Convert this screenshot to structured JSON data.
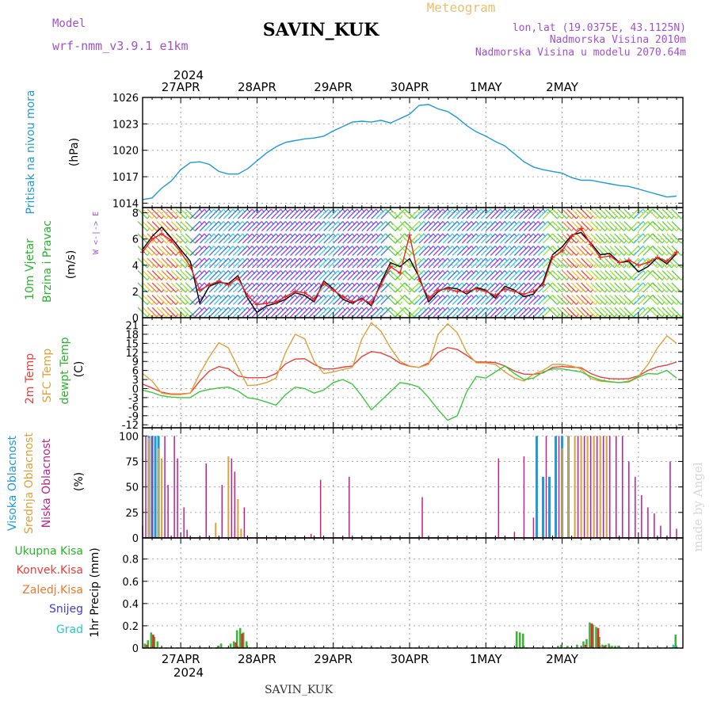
{
  "header": {
    "model_label": "Model",
    "model_name": "wrf-nmm_v3.9.1  e1km",
    "station": "SAVIN_KUK",
    "product": "Meteogram",
    "lonlat": "lon,lat (19.0375E, 43.1125N)",
    "altitude": "Nadmorska Visina 2010m",
    "model_altitude": "Nadmorska Visina u modelu 2070.64m",
    "year": "2024",
    "footer_station": "SAVIN_KUK",
    "credit": "made by Angel"
  },
  "dates": [
    "27APR",
    "28APR",
    "29APR",
    "30APR",
    "1MAY",
    "2MAY"
  ],
  "colors": {
    "pressure": "#1e9ad6",
    "wind_speed": "#000000",
    "wind_gust": "#e8282a",
    "t2m": "#e8403a",
    "sfc": "#e0a038",
    "dewpoint": "#3cc83c",
    "cloud_high": "#1e9ad6",
    "cloud_mid": "#e0a038",
    "cloud_low": "#c0208c",
    "precip_total": "#3cb43c",
    "precip_conv": "#e8282a",
    "precip_frozen": "#f07828",
    "precip_snow": "#3c3cdc",
    "precip_graupel": "#28c8c8"
  },
  "panels": {
    "pressure": {
      "label": "Pritisak na nivou mora",
      "unit": "(hPa)"
    },
    "wind": {
      "label1": "10m Vjetar",
      "label2": "Brzina i Pravac",
      "unit": "(m/s)",
      "compass": "W <-|-> E"
    },
    "temp": {
      "label1": "2m Temp",
      "label2": "SFC Temp",
      "label3": "dewpt Temp",
      "unit": "(C)"
    },
    "cloud": {
      "label1": "Visoka Oblacnost",
      "label2": "Srednja Oblacnost",
      "label3": "Niska Oblacnost",
      "unit": "(%)"
    },
    "precip": {
      "label1": "Ukupna Kisa",
      "label2": "Konvek.Kisa",
      "label3": "Zaledj.Kisa",
      "label4": "Snijeg",
      "label5": "Grad",
      "unit": "1hr Precip (mm)"
    }
  },
  "chart_data": [
    {
      "type": "line",
      "x_unit": "hours from 26APR 12UTC",
      "ylabel": "(hPa)",
      "yticks": [
        1014,
        1017,
        1020,
        1023,
        1026
      ],
      "ylim": [
        1013.5,
        1026
      ],
      "grid": true,
      "series": [
        {
          "name": "Pritisak na nivou mora",
          "x": [
            0,
            3,
            6,
            9,
            12,
            15,
            18,
            21,
            24,
            27,
            30,
            33,
            36,
            39,
            42,
            45,
            48,
            51,
            54,
            57,
            60,
            63,
            66,
            69,
            72,
            75,
            78,
            81,
            84,
            87,
            90,
            93,
            96,
            99,
            102,
            105,
            108,
            111,
            114,
            117,
            120,
            123,
            126,
            129,
            132,
            135,
            138,
            141,
            144,
            147,
            150,
            153,
            156,
            159,
            162,
            165,
            168
          ],
          "values": [
            1014.4,
            1014.6,
            1015.7,
            1016.5,
            1017.8,
            1018.6,
            1018.7,
            1018.4,
            1017.6,
            1017.3,
            1017.3,
            1017.9,
            1018.8,
            1019.7,
            1020.4,
            1020.9,
            1021.1,
            1021.3,
            1021.4,
            1021.6,
            1022.2,
            1022.7,
            1023.2,
            1023.3,
            1023.2,
            1023.4,
            1023.1,
            1023.6,
            1024.1,
            1025.1,
            1025.2,
            1024.7,
            1024.4,
            1023.7,
            1022.8,
            1022.1,
            1021.6,
            1021.0,
            1020.5,
            1019.6,
            1018.7,
            1018.1,
            1017.8,
            1017.6,
            1017.4,
            1016.9,
            1016.6,
            1016.6,
            1016.4,
            1016.2,
            1016.0,
            1015.9,
            1015.6,
            1015.3,
            1015.0,
            1014.7,
            1014.8
          ]
        }
      ]
    },
    {
      "type": "line",
      "x_unit": "hours from 26APR 12UTC",
      "ylabel": "(m/s)",
      "yticks": [
        0,
        2,
        4,
        6,
        8
      ],
      "ylim": [
        0,
        8.4
      ],
      "grid": true,
      "series": [
        {
          "name": "speed",
          "x": [
            0,
            3,
            6,
            9,
            12,
            15,
            18,
            21,
            24,
            27,
            30,
            33,
            36,
            39,
            42,
            45,
            48,
            51,
            54,
            57,
            60,
            63,
            66,
            69,
            72,
            75,
            78,
            81,
            84,
            87,
            90,
            93,
            96,
            99,
            102,
            105,
            108,
            111,
            114,
            117,
            120,
            123,
            126,
            129,
            132,
            135,
            138,
            141,
            144,
            147,
            150,
            153,
            156,
            159,
            162,
            165,
            168
          ],
          "values": [
            5.2,
            6.2,
            6.9,
            6.1,
            5.2,
            4.3,
            1.1,
            2.4,
            2.7,
            2.6,
            3.2,
            1.5,
            0.4,
            0.9,
            1.1,
            1.4,
            1.9,
            1.7,
            1.2,
            2.8,
            2.2,
            1.4,
            1.1,
            1.5,
            0.9,
            2.7,
            4.2,
            3.9,
            4.5,
            3.1,
            1.2,
            2.0,
            2.3,
            2.2,
            1.8,
            2.3,
            2.1,
            1.5,
            2.4,
            2.1,
            1.6,
            1.8,
            2.7,
            4.8,
            5.4,
            6.3,
            6.5,
            5.7,
            4.8,
            4.9,
            4.2,
            4.3,
            3.5,
            3.9,
            4.6,
            4.1,
            4.9
          ]
        },
        {
          "name": "gust",
          "x": [
            0,
            3,
            6,
            9,
            12,
            15,
            18,
            21,
            24,
            27,
            30,
            33,
            36,
            39,
            42,
            45,
            48,
            51,
            54,
            57,
            60,
            63,
            66,
            69,
            72,
            75,
            78,
            81,
            84,
            87,
            90,
            93,
            96,
            99,
            102,
            105,
            108,
            111,
            114,
            117,
            120,
            123,
            126,
            129,
            132,
            135,
            138,
            141,
            144,
            147,
            150,
            153,
            156,
            159,
            162,
            165,
            168
          ],
          "values": [
            5.0,
            6.0,
            6.4,
            5.9,
            5.0,
            3.9,
            2.1,
            2.5,
            2.8,
            2.5,
            3.0,
            1.7,
            1.0,
            1.1,
            1.2,
            1.6,
            2.0,
            1.9,
            1.4,
            2.6,
            2.1,
            1.6,
            1.2,
            1.4,
            1.1,
            2.5,
            3.9,
            3.4,
            6.3,
            2.9,
            1.5,
            2.1,
            2.2,
            2.0,
            2.0,
            2.2,
            2.0,
            1.7,
            2.2,
            2.0,
            1.8,
            2.0,
            2.5,
            4.6,
            5.1,
            6.2,
            6.8,
            5.6,
            4.6,
            4.7,
            4.2,
            4.4,
            4.0,
            4.2,
            4.6,
            4.3,
            5.0
          ]
        }
      ]
    },
    {
      "type": "line",
      "x_unit": "hours from 26APR 12UTC",
      "ylabel": "(C)",
      "yticks": [
        -12,
        -9,
        -6,
        -3,
        0,
        3,
        6,
        9,
        12,
        15,
        18,
        21
      ],
      "ylim": [
        -13,
        23.5
      ],
      "grid": true,
      "series": [
        {
          "name": "2m Temp",
          "x": [
            0,
            3,
            6,
            9,
            12,
            15,
            18,
            21,
            24,
            27,
            30,
            33,
            36,
            39,
            42,
            45,
            48,
            51,
            54,
            57,
            60,
            63,
            66,
            69,
            72,
            75,
            78,
            81,
            84,
            87,
            90,
            93,
            96,
            99,
            102,
            105,
            108,
            111,
            114,
            117,
            120,
            123,
            126,
            129,
            132,
            135,
            138,
            141,
            144,
            147,
            150,
            153,
            156,
            159,
            162,
            165,
            168
          ],
          "values": [
            1.5,
            0.2,
            -1.2,
            -1.8,
            -1.8,
            -1.5,
            2.5,
            5.8,
            7.3,
            6.6,
            4.2,
            3.6,
            3.6,
            3.7,
            5.0,
            8.2,
            9.8,
            9.9,
            8.0,
            6.5,
            6.5,
            7.1,
            7.5,
            10.6,
            12.3,
            11.8,
            10.5,
            8.4,
            7.4,
            7.0,
            8.5,
            12.0,
            13.6,
            13.0,
            11.0,
            8.8,
            8.8,
            8.6,
            7.5,
            5.8,
            4.8,
            4.7,
            5.2,
            7.0,
            7.3,
            7.1,
            6.9,
            5.0,
            3.8,
            3.3,
            3.2,
            3.3,
            4.2,
            6.0,
            7.2,
            7.8,
            8.8
          ]
        },
        {
          "name": "SFC Temp",
          "x": [
            0,
            3,
            6,
            9,
            12,
            15,
            18,
            21,
            24,
            27,
            30,
            33,
            36,
            39,
            42,
            45,
            48,
            51,
            54,
            57,
            60,
            63,
            66,
            69,
            72,
            75,
            78,
            81,
            84,
            87,
            90,
            93,
            96,
            99,
            102,
            105,
            108,
            111,
            114,
            117,
            120,
            123,
            126,
            129,
            132,
            135,
            138,
            141,
            144,
            147,
            150,
            153,
            156,
            159,
            162,
            165,
            168
          ],
          "values": [
            5.0,
            2.5,
            -1.5,
            -2.0,
            -2.0,
            -1.5,
            5.0,
            10.5,
            15.2,
            13.5,
            7.0,
            1.0,
            1.2,
            2.0,
            3.5,
            12.0,
            18.0,
            16.5,
            9.0,
            5.0,
            5.5,
            6.3,
            7.0,
            16.5,
            21.8,
            19.0,
            13.5,
            9.0,
            7.5,
            7.0,
            8.0,
            18.0,
            21.5,
            18.5,
            12.0,
            8.5,
            8.5,
            8.0,
            5.5,
            3.5,
            2.5,
            4.8,
            6.0,
            8.0,
            8.0,
            7.5,
            6.5,
            3.3,
            2.5,
            2.2,
            2.0,
            2.5,
            4.0,
            8.0,
            13.5,
            17.5,
            15.0
          ]
        },
        {
          "name": "dewpt Temp",
          "x": [
            0,
            3,
            6,
            9,
            12,
            15,
            18,
            21,
            24,
            27,
            30,
            33,
            36,
            39,
            42,
            45,
            48,
            51,
            54,
            57,
            60,
            63,
            66,
            69,
            72,
            75,
            78,
            81,
            84,
            87,
            90,
            93,
            96,
            99,
            102,
            105,
            108,
            111,
            114,
            117,
            120,
            123,
            126,
            129,
            132,
            135,
            138,
            141,
            144,
            147,
            150,
            153,
            156,
            159,
            162,
            165,
            168
          ],
          "values": [
            -0.5,
            -1.3,
            -2.4,
            -2.8,
            -3.0,
            -3.0,
            -1.0,
            -0.3,
            0.2,
            0.5,
            -0.8,
            -3.0,
            -3.5,
            -4.5,
            -5.5,
            -2.0,
            0.5,
            0.0,
            -1.5,
            -0.5,
            2.0,
            3.0,
            1.5,
            -2.5,
            -7.0,
            -4.0,
            -1.0,
            2.0,
            1.5,
            0.5,
            -3.0,
            -7.0,
            -10.5,
            -9.0,
            -1.0,
            4.0,
            3.5,
            5.5,
            7.5,
            5.0,
            3.0,
            3.5,
            5.5,
            6.5,
            6.5,
            6.0,
            5.5,
            4.0,
            2.8,
            2.3,
            2.0,
            2.2,
            3.8,
            5.0,
            4.8,
            6.0,
            3.5
          ]
        }
      ]
    },
    {
      "type": "bar",
      "x_unit": "hours from 26APR 12UTC",
      "ylabel": "(%)",
      "yticks": [
        0,
        25,
        50,
        75,
        100
      ],
      "ylim": [
        0,
        108
      ],
      "grid": true,
      "series": [
        {
          "name": "Visoka Oblacnost",
          "x": [
            2,
            3,
            4,
            5,
            124,
            126,
            128,
            130,
            132,
            134
          ],
          "values": [
            100,
            100,
            100,
            100,
            100,
            60,
            60,
            100,
            100,
            100
          ]
        },
        {
          "name": "Srednja Oblacnost",
          "x": [
            2,
            5,
            6,
            23,
            27,
            30,
            31,
            132,
            134,
            136,
            138,
            140,
            142,
            144,
            146
          ],
          "values": [
            98,
            88,
            78,
            15,
            80,
            38,
            9,
            88,
            100,
            100,
            100,
            100,
            100,
            100,
            100
          ]
        },
        {
          "name": "Niska Oblacnost",
          "x": [
            0,
            1,
            3,
            7,
            8,
            10,
            11,
            13,
            14,
            20,
            25,
            28,
            29,
            32,
            53,
            56,
            60,
            65,
            88,
            112,
            117,
            120,
            123,
            127,
            131,
            137,
            139,
            141,
            143,
            145,
            147,
            149,
            151,
            153,
            155,
            157,
            159,
            161,
            163,
            166,
            168
          ],
          "values": [
            12,
            100,
            100,
            100,
            52,
            100,
            78,
            30,
            8,
            73,
            52,
            78,
            65,
            30,
            4,
            57,
            3,
            60,
            40,
            78,
            6,
            80,
            20,
            100,
            100,
            100,
            100,
            100,
            100,
            100,
            100,
            100,
            100,
            75,
            60,
            42,
            30,
            24,
            12,
            75,
            9
          ]
        }
      ]
    },
    {
      "type": "bar",
      "x_unit": "hours from 26APR 12UTC",
      "ylabel": "1hr Precip (mm)",
      "yticks": [
        0,
        0.2,
        0.4,
        0.6,
        0.8
      ],
      "ylim": [
        0,
        0.99
      ],
      "grid": true,
      "series": [
        {
          "name": "Ukupna Kisa",
          "x": [
            1,
            2,
            3,
            4,
            5,
            24,
            25,
            28,
            29,
            30,
            31,
            32,
            33,
            118,
            119,
            120,
            131,
            132,
            134,
            137,
            139,
            140,
            141,
            142,
            143,
            144,
            145,
            146,
            147,
            148,
            149,
            150,
            168
          ],
          "values": [
            0.04,
            0.07,
            0.14,
            0.1,
            0.06,
            0.02,
            0.04,
            0.04,
            0.06,
            0.16,
            0.18,
            0.14,
            0.06,
            0.15,
            0.14,
            0.13,
            0.02,
            0.03,
            0.02,
            0.03,
            0.06,
            0.08,
            0.23,
            0.21,
            0.19,
            0.1,
            0.03,
            0.03,
            0.04,
            0.02,
            0.02,
            0.02,
            0.12
          ]
        },
        {
          "name": "Konvek.Kisa",
          "x": [
            1,
            3,
            29,
            31,
            139,
            141,
            143,
            145
          ],
          "values": [
            0.03,
            0.12,
            0.05,
            0.13,
            0.03,
            0.22,
            0.18,
            0.02
          ]
        },
        {
          "name": "Zaledj.Kisa",
          "x": [],
          "values": []
        },
        {
          "name": "Snijeg",
          "x": [],
          "values": []
        },
        {
          "name": "Grad",
          "x": [
            167
          ],
          "values": [
            0.03
          ]
        }
      ]
    }
  ]
}
